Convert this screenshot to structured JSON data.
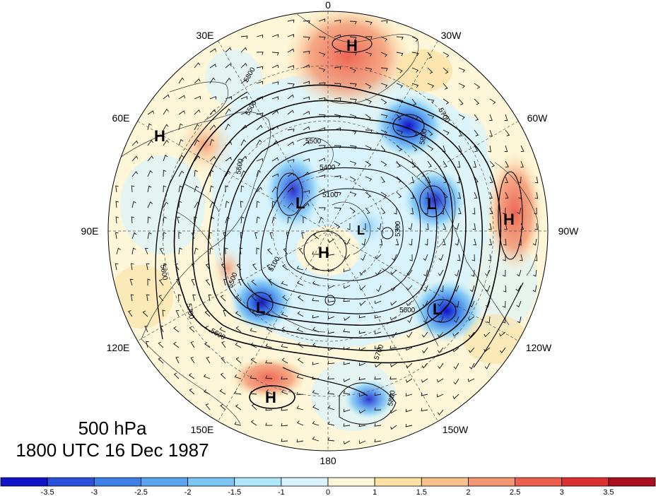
{
  "caption": {
    "level": "500 hPa",
    "time": "1800 UTC 16 Dec 1987"
  },
  "longitude_labels": [
    "0",
    "30W",
    "60W",
    "90W",
    "120W",
    "150W",
    "180",
    "150E",
    "120E",
    "90E",
    "60E",
    "30E"
  ],
  "pressure_centers": [
    {
      "type": "H",
      "lon_label": "near 0"
    },
    {
      "type": "H",
      "lon_label": "60E"
    },
    {
      "type": "H",
      "lon_label": "90W"
    },
    {
      "type": "H",
      "lon_label": "pole"
    },
    {
      "type": "H",
      "lon_label": "150E"
    },
    {
      "type": "L",
      "lon_label": "60E"
    },
    {
      "type": "L",
      "lon_label": "60W"
    },
    {
      "type": "L",
      "lon_label": "120E"
    },
    {
      "type": "L",
      "lon_label": "120W"
    },
    {
      "type": "L",
      "lon_label": "pole"
    }
  ],
  "contour_labels": [
    "5800",
    "5500",
    "5500",
    "5400",
    "5100",
    "5600",
    "5700",
    "5800",
    "5100",
    "5500",
    "5600",
    "5700",
    "5800",
    "5600",
    "5700",
    "5800",
    "5300"
  ],
  "colorbar": {
    "ticks": [
      "-3.5",
      "-3",
      "-2.5",
      "-2",
      "-1.5",
      "-1",
      "0",
      "1",
      "1.5",
      "2",
      "2.5",
      "3",
      "3.5"
    ],
    "colors": [
      "#1212c8",
      "#2a50dc",
      "#3f7fe8",
      "#5aa5f0",
      "#7cc6f6",
      "#aee6fa",
      "#d9f3fc",
      "#fdf6d8",
      "#fbe1a4",
      "#f8c08a",
      "#f39570",
      "#ec5f4f",
      "#dc3030",
      "#a8101e"
    ]
  },
  "colors": {
    "land_outline": "#333333",
    "contour": "#000000",
    "background": "#ffffff"
  }
}
